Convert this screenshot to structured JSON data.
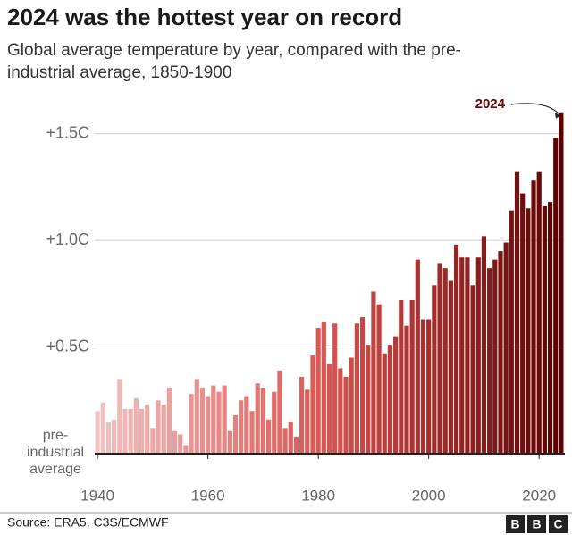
{
  "chart_data": {
    "type": "bar",
    "title": "2024 was the hottest year on record",
    "subtitle": "Global average temperature by year, compared with the pre-industrial average, 1850-1900",
    "annotation": "2024",
    "source": "Source: ERA5, C3S/ECMWF",
    "logo": [
      "B",
      "B",
      "C"
    ],
    "x": [
      1940,
      1941,
      1942,
      1943,
      1944,
      1945,
      1946,
      1947,
      1948,
      1949,
      1950,
      1951,
      1952,
      1953,
      1954,
      1955,
      1956,
      1957,
      1958,
      1959,
      1960,
      1961,
      1962,
      1963,
      1964,
      1965,
      1966,
      1967,
      1968,
      1969,
      1970,
      1971,
      1972,
      1973,
      1974,
      1975,
      1976,
      1977,
      1978,
      1979,
      1980,
      1981,
      1982,
      1983,
      1984,
      1985,
      1986,
      1987,
      1988,
      1989,
      1990,
      1991,
      1992,
      1993,
      1994,
      1995,
      1996,
      1997,
      1998,
      1999,
      2000,
      2001,
      2002,
      2003,
      2004,
      2005,
      2006,
      2007,
      2008,
      2009,
      2010,
      2011,
      2012,
      2013,
      2014,
      2015,
      2016,
      2017,
      2018,
      2019,
      2020,
      2021,
      2022,
      2023,
      2024
    ],
    "values": [
      0.2,
      0.24,
      0.15,
      0.16,
      0.35,
      0.21,
      0.21,
      0.26,
      0.21,
      0.23,
      0.12,
      0.25,
      0.23,
      0.31,
      0.11,
      0.09,
      0.04,
      0.28,
      0.35,
      0.31,
      0.27,
      0.32,
      0.29,
      0.32,
      0.11,
      0.18,
      0.25,
      0.27,
      0.2,
      0.33,
      0.31,
      0.16,
      0.29,
      0.39,
      0.12,
      0.15,
      0.08,
      0.36,
      0.3,
      0.46,
      0.59,
      0.62,
      0.42,
      0.61,
      0.4,
      0.36,
      0.45,
      0.61,
      0.64,
      0.51,
      0.76,
      0.7,
      0.47,
      0.51,
      0.55,
      0.72,
      0.6,
      0.72,
      0.91,
      0.63,
      0.63,
      0.79,
      0.89,
      0.87,
      0.81,
      0.98,
      0.92,
      0.92,
      0.79,
      0.92,
      1.02,
      0.87,
      0.91,
      0.95,
      0.99,
      1.14,
      1.32,
      1.22,
      1.15,
      1.28,
      1.32,
      1.16,
      1.18,
      1.48,
      1.6
    ],
    "color_scale": [
      "#f3c3c3",
      "#d9534f",
      "#5c0000"
    ],
    "xlim": [
      1939.5,
      2024.5
    ],
    "xticks": [
      1940,
      1960,
      1980,
      2000,
      2020
    ],
    "ylim": [
      0,
      1.62
    ],
    "yticks": [
      {
        "value": 0,
        "label": "pre-industrial average"
      },
      {
        "value": 0.5,
        "label": "+0.5C"
      },
      {
        "value": 1.0,
        "label": "+1.0C"
      },
      {
        "value": 1.5,
        "label": "+1.5C"
      }
    ],
    "grid": true
  }
}
